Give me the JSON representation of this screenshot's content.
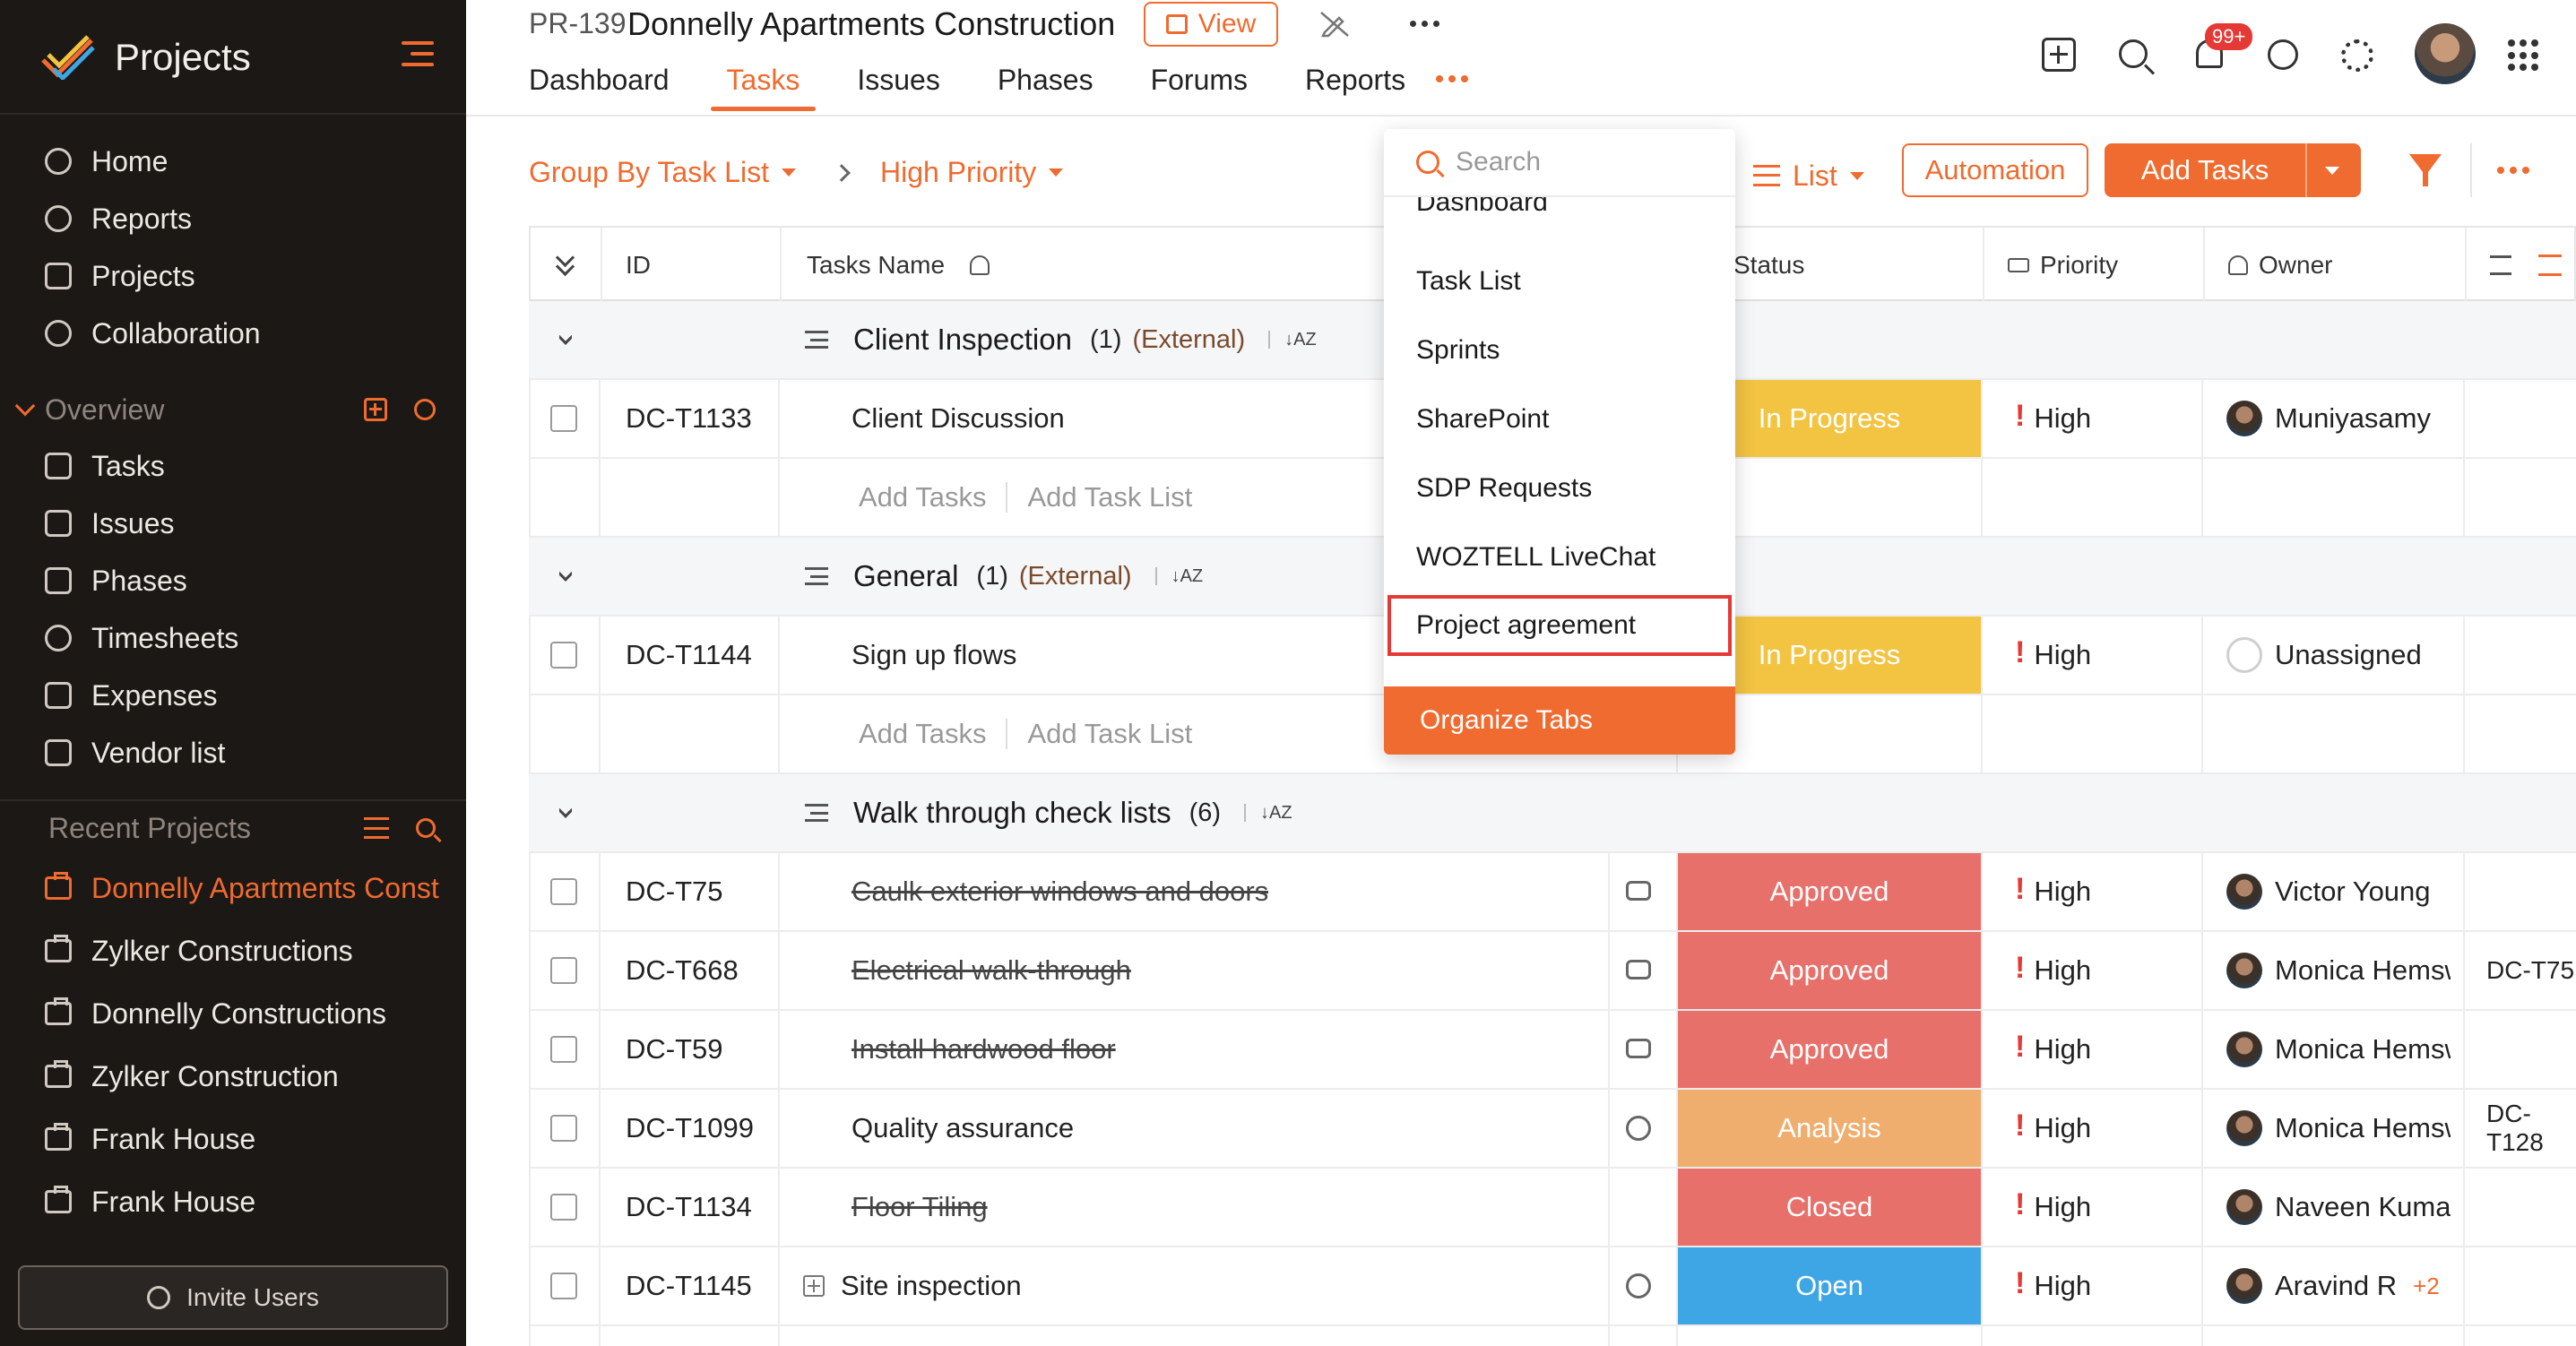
{
  "sidebar": {
    "brand": "Projects",
    "nav": [
      {
        "label": "Home",
        "icon": "home-icon"
      },
      {
        "label": "Reports",
        "icon": "reports-icon"
      },
      {
        "label": "Projects",
        "icon": "projects-icon"
      },
      {
        "label": "Collaboration",
        "icon": "collaboration-icon"
      }
    ],
    "overview_title": "Overview",
    "overview": [
      {
        "label": "Tasks",
        "icon": "tasks-icon"
      },
      {
        "label": "Issues",
        "icon": "issues-icon"
      },
      {
        "label": "Phases",
        "icon": "phases-icon"
      },
      {
        "label": "Timesheets",
        "icon": "timesheets-icon"
      },
      {
        "label": "Expenses",
        "icon": "expenses-icon"
      },
      {
        "label": "Vendor list",
        "icon": "vendor-list-icon"
      }
    ],
    "recent_title": "Recent Projects",
    "recent": [
      {
        "label": "Donnelly Apartments Construction",
        "active": true
      },
      {
        "label": "Zylker Constructions"
      },
      {
        "label": "Donnelly Constructions"
      },
      {
        "label": "Zylker Construction"
      },
      {
        "label": "Frank House"
      },
      {
        "label": "Frank House"
      }
    ],
    "invite_label": "Invite Users"
  },
  "header": {
    "project_id": "PR-139",
    "project_title": "Donnelly Apartments Construction",
    "view_label": "View",
    "tabs": [
      "Dashboard",
      "Tasks",
      "Issues",
      "Phases",
      "Forums",
      "Reports"
    ],
    "active_tab": "Tasks",
    "notification_badge": "99+"
  },
  "toolbar": {
    "group_by": "Group By Task List",
    "filter_preset": "High Priority",
    "view_mode": "List",
    "automation_label": "Automation",
    "add_tasks_label": "Add Tasks"
  },
  "table": {
    "columns": [
      "ID",
      "Tasks Name",
      "Status",
      "Priority",
      "Owner"
    ],
    "groups": [
      {
        "name": "Client Inspection",
        "count": "(1)",
        "tag": "(External)",
        "tasks": [
          {
            "id": "DC-T1133",
            "name": "Client Discussion",
            "done": false,
            "status": "In Progress",
            "priority": "High",
            "owner": "Muniyasamy",
            "dep": ""
          }
        ],
        "add_tasks": "Add Tasks",
        "add_list": "Add Task List"
      },
      {
        "name": "General",
        "count": "(1)",
        "tag": "(External)",
        "tasks": [
          {
            "id": "DC-T1144",
            "name": "Sign up flows",
            "done": false,
            "status": "In Progress",
            "priority": "High",
            "owner": "Unassigned",
            "dep": ""
          }
        ],
        "add_tasks": "Add Tasks",
        "add_list": "Add Task List"
      },
      {
        "name": "Walk through check lists",
        "count": "(6)",
        "tag": "",
        "tasks": [
          {
            "id": "DC-T75",
            "name": "Caulk exterior windows and doors",
            "done": true,
            "status": "Approved",
            "priority": "High",
            "owner": "Victor Young",
            "dep": "",
            "icon": "comment-icon"
          },
          {
            "id": "DC-T668",
            "name": "Electrical walk-through",
            "done": true,
            "status": "Approved",
            "priority": "High",
            "owner": "Monica Hemsworth",
            "dep": "DC-T75",
            "icon": "comment-icon"
          },
          {
            "id": "DC-T59",
            "name": "Install hardwood floor",
            "done": true,
            "status": "Approved",
            "priority": "High",
            "owner": "Monica Hemsworth",
            "dep": "",
            "icon": "comment-icon"
          },
          {
            "id": "DC-T1099",
            "name": "Quality assurance",
            "done": false,
            "status": "Analysis",
            "priority": "High",
            "owner": "Monica Hemsworth",
            "dep": "DC-T128",
            "icon": "timer-icon"
          },
          {
            "id": "DC-T1134",
            "name": "Floor Tiling",
            "done": true,
            "status": "Closed",
            "priority": "High",
            "owner": "Naveen Kumar",
            "dep": ""
          },
          {
            "id": "DC-T1145",
            "name": "Site inspection",
            "done": false,
            "status": "Open",
            "priority": "High",
            "owner": "Aravind R",
            "owner_extra": "+2",
            "dep": "",
            "icon": "timer-icon",
            "expandable": true
          }
        ]
      }
    ]
  },
  "status_colors": {
    "In Progress": "#f2c442",
    "Approved": "#e8706a",
    "Analysis": "#efae6e",
    "Closed": "#e8706a",
    "Open": "#3fa6e6"
  },
  "dropdown": {
    "search_placeholder": "Search",
    "items": [
      "Dashboard",
      "Task List",
      "Sprints",
      "SharePoint",
      "SDP Requests",
      "WOZTELL LiveChat",
      "Project agreement"
    ],
    "highlighted": "Project agreement",
    "organize_label": "Organize Tabs"
  }
}
